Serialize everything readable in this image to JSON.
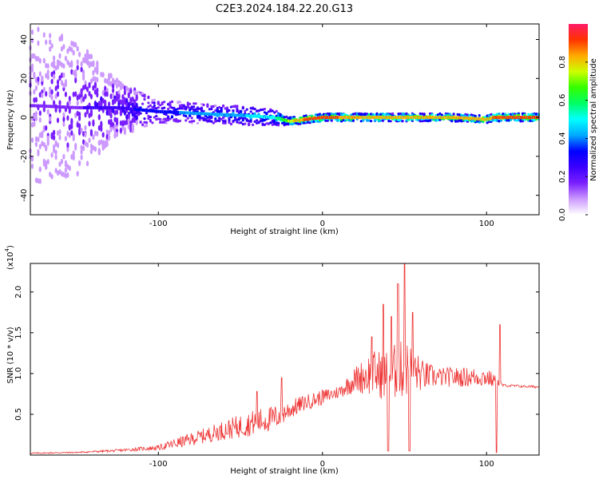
{
  "title": "C2E3.2024.184.22.20.G13",
  "chart_data": [
    {
      "type": "heatmap",
      "title": "C2E3.2024.184.22.20.G13",
      "xlabel": "Height of straight line (km)",
      "ylabel": "Frequency (Hz)",
      "xlim": [
        -178,
        132
      ],
      "ylim": [
        -50,
        48
      ],
      "xticks": [
        -100,
        0,
        100
      ],
      "yticks": [
        -40,
        -20,
        0,
        20,
        40
      ],
      "colorbar": {
        "label": "Normalized spectral amplitude",
        "range": [
          0,
          1
        ],
        "ticks": [
          "0.0",
          "0.2",
          "0.4",
          "0.6",
          "0.8"
        ],
        "colors": [
          "#ffffff",
          "#cc99ff",
          "#7a1fff",
          "#3b00ff",
          "#0000ff",
          "#00aaff",
          "#00ffff",
          "#00ff66",
          "#33ff00",
          "#ccff00",
          "#ffaa00",
          "#ff3300",
          "#ff1a66"
        ]
      },
      "band": {
        "x": [
          -175,
          -150,
          -125,
          -100,
          -75,
          -50,
          -30,
          -20,
          -10,
          0,
          20,
          40,
          60,
          80,
          100,
          105,
          132
        ],
        "center_hz": [
          6,
          5,
          5,
          3,
          2,
          1,
          0,
          -2,
          -1,
          0,
          0,
          0,
          0,
          0,
          -1,
          0,
          0
        ],
        "halfwidth_hz": [
          40,
          35,
          14,
          6,
          5,
          5,
          4,
          2,
          2,
          2,
          2,
          2,
          2,
          2,
          2,
          2,
          2
        ],
        "peak_amplitude": [
          0.15,
          0.2,
          0.25,
          0.35,
          0.4,
          0.45,
          0.5,
          0.75,
          0.9,
          0.9,
          0.85,
          0.8,
          0.8,
          0.8,
          0.8,
          0.9,
          0.9
        ]
      }
    },
    {
      "type": "line",
      "xlabel": "Height of straight line (km)",
      "ylabel": "SNR (10 * v/v)",
      "yscale_label": "(x10",
      "yscale_exp": "4",
      "xlim": [
        -178,
        132
      ],
      "ylim": [
        0,
        2.35
      ],
      "xticks": [
        -100,
        0,
        100
      ],
      "yticks": [
        "0.5",
        "1.0",
        "1.5",
        "2.0"
      ],
      "color": "#ee3333",
      "x": [
        -178,
        -150,
        -125,
        -110,
        -100,
        -90,
        -80,
        -70,
        -60,
        -50,
        -40,
        -30,
        -20,
        -10,
        0,
        10,
        20,
        30,
        40,
        45,
        50,
        55,
        60,
        70,
        80,
        90,
        100,
        105,
        110,
        120,
        132
      ],
      "y": [
        0.02,
        0.03,
        0.05,
        0.07,
        0.08,
        0.12,
        0.17,
        0.22,
        0.27,
        0.31,
        0.36,
        0.4,
        0.52,
        0.62,
        0.68,
        0.75,
        0.88,
        0.92,
        0.88,
        0.92,
        0.95,
        0.95,
        0.92,
        0.92,
        0.92,
        0.92,
        0.92,
        0.88,
        0.85,
        0.84,
        0.83
      ],
      "noise": [
        0.01,
        0.01,
        0.02,
        0.03,
        0.04,
        0.08,
        0.1,
        0.12,
        0.15,
        0.18,
        0.2,
        0.2,
        0.15,
        0.12,
        0.12,
        0.1,
        0.2,
        0.35,
        0.4,
        0.45,
        0.45,
        0.4,
        0.25,
        0.15,
        0.15,
        0.15,
        0.15,
        0.1,
        0.02,
        0.02,
        0.02
      ],
      "spikes": [
        {
          "x": -25,
          "y": 0.95
        },
        {
          "x": -40,
          "y": 0.78
        },
        {
          "x": 30,
          "y": 1.45
        },
        {
          "x": 37,
          "y": 1.85
        },
        {
          "x": 42,
          "y": 1.7
        },
        {
          "x": 46,
          "y": 2.1
        },
        {
          "x": 50,
          "y": 2.35
        },
        {
          "x": 55,
          "y": 1.75
        },
        {
          "x": 106,
          "y": 1.45
        },
        {
          "x": 108,
          "y": 1.6
        }
      ],
      "dips": [
        {
          "x": 40,
          "y": 0.05
        },
        {
          "x": 53,
          "y": 0.05
        },
        {
          "x": 106,
          "y": 0.03
        }
      ]
    }
  ]
}
